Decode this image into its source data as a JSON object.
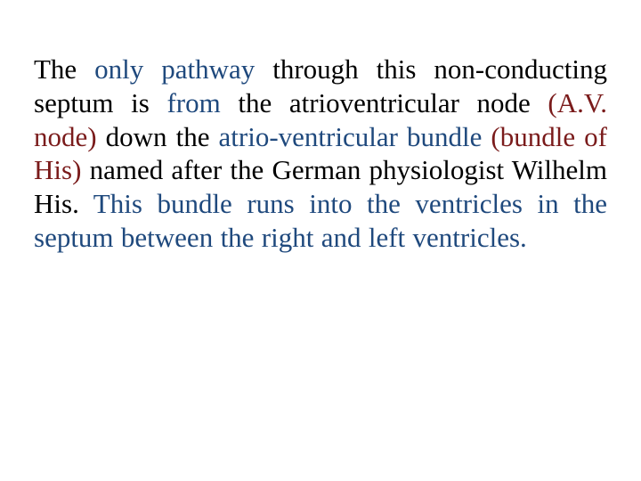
{
  "colors": {
    "text_default": "#000000",
    "blue": "#1f497d",
    "dark_red": "#7a1b1b",
    "background": "#ffffff"
  },
  "typography": {
    "font_family": "Times New Roman, serif",
    "font_size_pt": 23,
    "line_height": 1.22,
    "text_align": "justify"
  },
  "paragraph": {
    "segments": [
      {
        "text": "The ",
        "color": "#000000"
      },
      {
        "text": "only pathway",
        "color": "#1f497d"
      },
      {
        "text": " through this non-conducting septum is ",
        "color": "#000000"
      },
      {
        "text": "from",
        "color": "#1f497d"
      },
      {
        "text": " the atrioventricular node ",
        "color": "#000000"
      },
      {
        "text": "(A.V. node)",
        "color": "#7a1b1b"
      },
      {
        "text": " down the ",
        "color": "#000000"
      },
      {
        "text": "atrio-ventricular bundle ",
        "color": "#1f497d"
      },
      {
        "text": "(bundle of His)",
        "color": "#7a1b1b"
      },
      {
        "text": " named after the German physiologist Wilhelm His. ",
        "color": "#000000"
      },
      {
        "text": "This bundle runs into the ventricles in the septum between the right and left ventricles.",
        "color": "#1f497d"
      }
    ]
  }
}
